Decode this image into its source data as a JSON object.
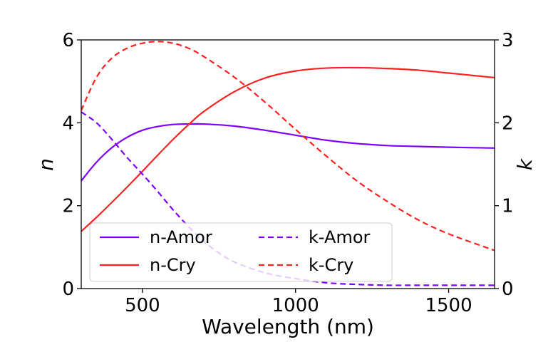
{
  "chart_data": {
    "type": "line",
    "title": "",
    "xlabel": "Wavelength (nm)",
    "ylabel_left": "n",
    "ylabel_right": "k",
    "xlim": [
      300,
      1650
    ],
    "ylim_left": [
      0,
      6
    ],
    "ylim_right": [
      0,
      3
    ],
    "xticks": [
      500,
      1000,
      1500
    ],
    "yticks_left": [
      0,
      2,
      4,
      6
    ],
    "yticks_right": [
      0,
      1,
      2,
      3
    ],
    "legend_position": "lower-left",
    "series": [
      {
        "name": "n-Amor",
        "axis": "left",
        "style": "solid",
        "color": "#8000ff",
        "x": [
          300,
          350,
          400,
          450,
          500,
          550,
          600,
          650,
          700,
          800,
          900,
          1000,
          1100,
          1200,
          1300,
          1400,
          1500,
          1650
        ],
        "y": [
          2.6,
          3.05,
          3.4,
          3.65,
          3.82,
          3.91,
          3.96,
          3.97,
          3.97,
          3.92,
          3.82,
          3.7,
          3.58,
          3.5,
          3.45,
          3.43,
          3.41,
          3.39
        ]
      },
      {
        "name": "n-Cry",
        "axis": "left",
        "style": "solid",
        "color": "#ff2020",
        "x": [
          300,
          350,
          400,
          450,
          500,
          550,
          600,
          650,
          700,
          800,
          900,
          1000,
          1100,
          1200,
          1300,
          1400,
          1500,
          1650
        ],
        "y": [
          1.38,
          1.72,
          2.08,
          2.45,
          2.83,
          3.22,
          3.6,
          3.95,
          4.27,
          4.75,
          5.08,
          5.25,
          5.32,
          5.33,
          5.31,
          5.27,
          5.2,
          5.09
        ]
      },
      {
        "name": "k-Amor",
        "axis": "right",
        "style": "dashed",
        "color": "#8000ff",
        "x": [
          300,
          350,
          400,
          450,
          500,
          550,
          600,
          650,
          700,
          750,
          800,
          900,
          1000,
          1100,
          1200,
          1300,
          1400,
          1500,
          1650
        ],
        "y": [
          2.13,
          2.0,
          1.8,
          1.58,
          1.38,
          1.17,
          0.95,
          0.75,
          0.57,
          0.43,
          0.32,
          0.19,
          0.12,
          0.07,
          0.05,
          0.04,
          0.04,
          0.04,
          0.04
        ]
      },
      {
        "name": "k-Cry",
        "axis": "right",
        "style": "dashed",
        "color": "#ff2020",
        "x": [
          300,
          350,
          400,
          450,
          500,
          550,
          600,
          650,
          700,
          800,
          900,
          1000,
          1100,
          1200,
          1300,
          1400,
          1500,
          1650
        ],
        "y": [
          2.15,
          2.55,
          2.78,
          2.9,
          2.96,
          2.98,
          2.96,
          2.9,
          2.8,
          2.55,
          2.25,
          1.92,
          1.6,
          1.3,
          1.05,
          0.83,
          0.66,
          0.46
        ]
      }
    ]
  }
}
